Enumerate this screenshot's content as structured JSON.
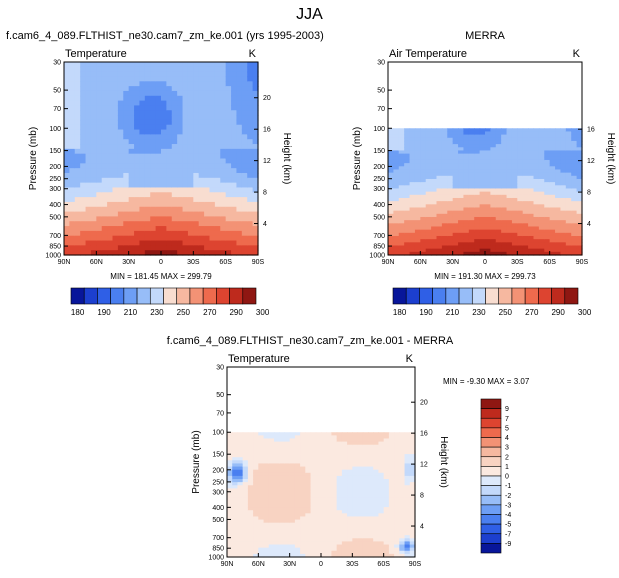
{
  "page_title": "JJA",
  "chart_data": [
    {
      "type": "heatmap",
      "title": "f.cam6_4_089.FLTHIST_ne30.cam7_zm_ke.001 (yrs 1995-2003)",
      "subtitle_left": "Temperature",
      "units": "K",
      "ylabel": "Pressure (mb)",
      "ylabel_right": "Height (km)",
      "pressure_ticks": [
        "30",
        "50",
        "70",
        "100",
        "150",
        "200",
        "250",
        "300",
        "400",
        "500",
        "700",
        "850",
        "1000"
      ],
      "height_ticks": [
        "4",
        "8",
        "12",
        "16",
        "20"
      ],
      "lat_ticks": [
        "90N",
        "60N",
        "30N",
        "0",
        "30S",
        "60S",
        "90S"
      ],
      "stats": "MIN = 181.45  MAX = 299.79",
      "colorbar_labels": [
        "180",
        "190",
        "210",
        "230",
        "250",
        "270",
        "290",
        "300"
      ],
      "colorbar_levels": 14,
      "data_top_mb": 30
    },
    {
      "type": "heatmap",
      "title": "MERRA",
      "subtitle_left": "Air Temperature",
      "units": "K",
      "ylabel": "Pressure (mb)",
      "ylabel_right": "Height (km)",
      "pressure_ticks": [
        "30",
        "50",
        "70",
        "100",
        "150",
        "200",
        "250",
        "300",
        "400",
        "500",
        "700",
        "850",
        "1000"
      ],
      "height_ticks": [
        "4",
        "8",
        "12",
        "16"
      ],
      "lat_ticks": [
        "90N",
        "60N",
        "30N",
        "0",
        "30S",
        "60S",
        "90S"
      ],
      "stats": "MIN = 191.30  MAX = 299.73",
      "colorbar_labels": [
        "180",
        "190",
        "210",
        "230",
        "250",
        "270",
        "290",
        "300"
      ],
      "colorbar_levels": 14,
      "data_top_mb": 100
    },
    {
      "type": "heatmap",
      "title": "f.cam6_4_089.FLTHIST_ne30.cam7_zm_ke.001 - MERRA",
      "subtitle_left": "Temperature",
      "units": "K",
      "ylabel": "Pressure (mb)",
      "ylabel_right": "Height (km)",
      "pressure_ticks": [
        "30",
        "50",
        "70",
        "100",
        "150",
        "200",
        "250",
        "300",
        "400",
        "500",
        "700",
        "850",
        "1000"
      ],
      "height_ticks": [
        "4",
        "8",
        "12",
        "16",
        "20"
      ],
      "lat_ticks": [
        "90N",
        "60N",
        "30N",
        "0",
        "30S",
        "60S",
        "90S"
      ],
      "stats": "MIN =  -9.30  MAX =   3.07",
      "colorbar_labels": [
        "9",
        "7",
        "5",
        "4",
        "3",
        "2",
        "1",
        "0",
        "-1",
        "-2",
        "-3",
        "-4",
        "-5",
        "-7",
        "-9"
      ],
      "colorbar_levels": 16,
      "data_top_mb": 100
    }
  ],
  "colors": {
    "temp_scale": [
      "#08169a",
      "#1c3fcf",
      "#2f5fe6",
      "#4a7ff0",
      "#6d9ef5",
      "#97bdf8",
      "#c3d9fb",
      "#f8ddd0",
      "#f6b8a0",
      "#f39275",
      "#ee6a4d",
      "#dd4430",
      "#be2a1d",
      "#8f1712"
    ],
    "diff_scale": [
      "#8f1712",
      "#be2a1d",
      "#dd4430",
      "#ee6a4d",
      "#f39275",
      "#f6b8a0",
      "#f8d3c2",
      "#fbe9e0",
      "#dde9fb",
      "#c3d9fb",
      "#97bdf8",
      "#6d9ef5",
      "#4a7ff0",
      "#2f5fe6",
      "#1c3fcf",
      "#08169a"
    ]
  }
}
